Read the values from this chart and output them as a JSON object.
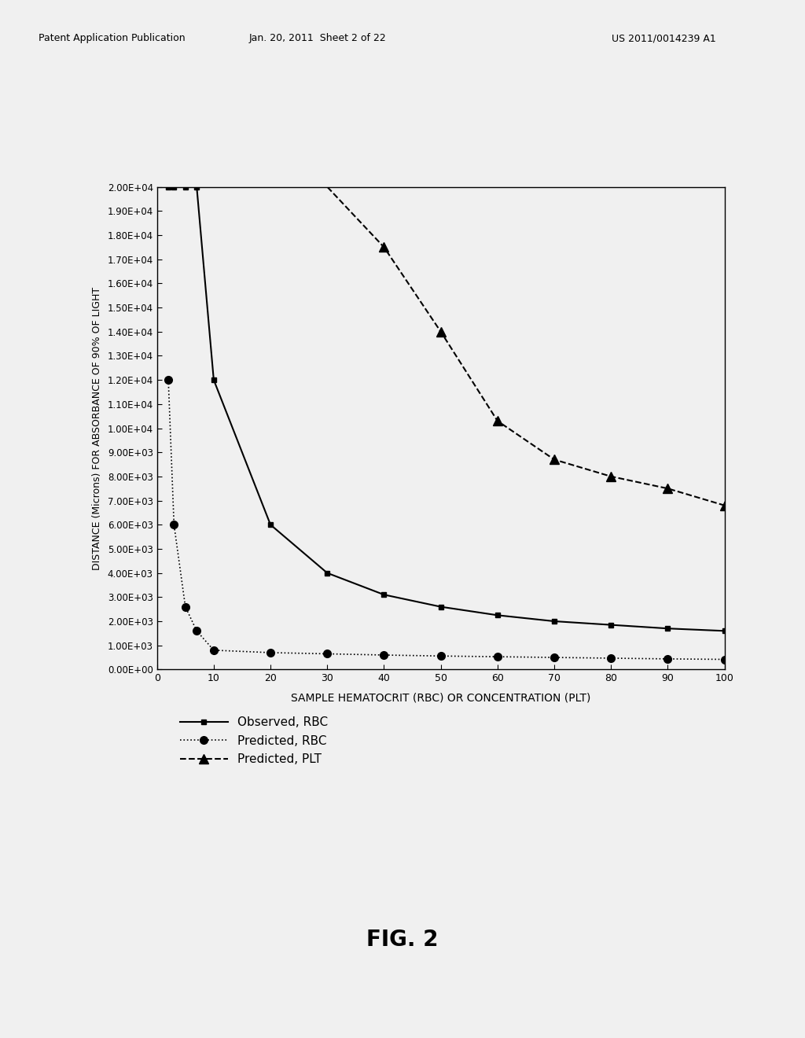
{
  "header_left": "Patent Application Publication",
  "header_mid": "Jan. 20, 2011  Sheet 2 of 22",
  "header_right": "US 2011/0014239 A1",
  "fig_label": "FIG. 2",
  "xlabel": "SAMPLE HEMATOCRIT (RBC) OR CONCENTRATION (PLT)",
  "ylabel": "DISTANCE (Microns) FOR ABSORBANCE OF 90% OF LIGHT",
  "ylim": [
    0,
    20000
  ],
  "xlim": [
    0,
    100
  ],
  "yticks": [
    0,
    1000,
    2000,
    3000,
    4000,
    5000,
    6000,
    7000,
    8000,
    9000,
    10000,
    11000,
    12000,
    13000,
    14000,
    15000,
    16000,
    17000,
    18000,
    19000,
    20000
  ],
  "ytick_labels": [
    "0.00E+00",
    "1.00E+03",
    "2.00E+03",
    "3.00E+03",
    "4.00E+03",
    "5.00E+03",
    "6.00E+03",
    "7.00E+03",
    "8.00E+03",
    "9.00E+03",
    "1.00E+04",
    "1.10E+04",
    "1.20E+04",
    "1.30E+04",
    "1.40E+04",
    "1.50E+04",
    "1.60E+04",
    "1.70E+04",
    "1.80E+04",
    "1.90E+04",
    "2.00E+04"
  ],
  "xticks": [
    0,
    10,
    20,
    30,
    40,
    50,
    60,
    70,
    80,
    90,
    100
  ],
  "obs_rbc_x": [
    2,
    3,
    5,
    7,
    10,
    20,
    30,
    40,
    50,
    60,
    70,
    80,
    90,
    100
  ],
  "obs_rbc_y": [
    12000,
    6000,
    2600,
    1600,
    800,
    700,
    650,
    600,
    560,
    530,
    500,
    470,
    440,
    420
  ],
  "pred_rbc_x": [
    2,
    3,
    5,
    7,
    10,
    20,
    30,
    40,
    50,
    60,
    70,
    80,
    90,
    100
  ],
  "pred_rbc_y": [
    20000,
    20000,
    20000,
    20000,
    12000,
    6000,
    4000,
    3100,
    2600,
    2250,
    2000,
    1850,
    1700,
    1600
  ],
  "pred_plt_x": [
    1,
    5,
    10,
    20,
    30,
    40,
    50,
    60,
    70,
    80,
    90,
    100
  ],
  "pred_plt_y": [
    20000,
    20000,
    20000,
    20000,
    20000,
    17500,
    14000,
    10300,
    8700,
    8000,
    7500,
    6800
  ],
  "pred_plt_marker_x": [
    40,
    50,
    60,
    70,
    80,
    90,
    100
  ],
  "pred_plt_marker_y": [
    17500,
    14000,
    10300,
    8700,
    8000,
    7500,
    6800
  ],
  "bg_color": "#f0f0f0",
  "legend_labels": [
    "Observed, RBC",
    "Predicted, RBC",
    "Predicted, PLT"
  ]
}
